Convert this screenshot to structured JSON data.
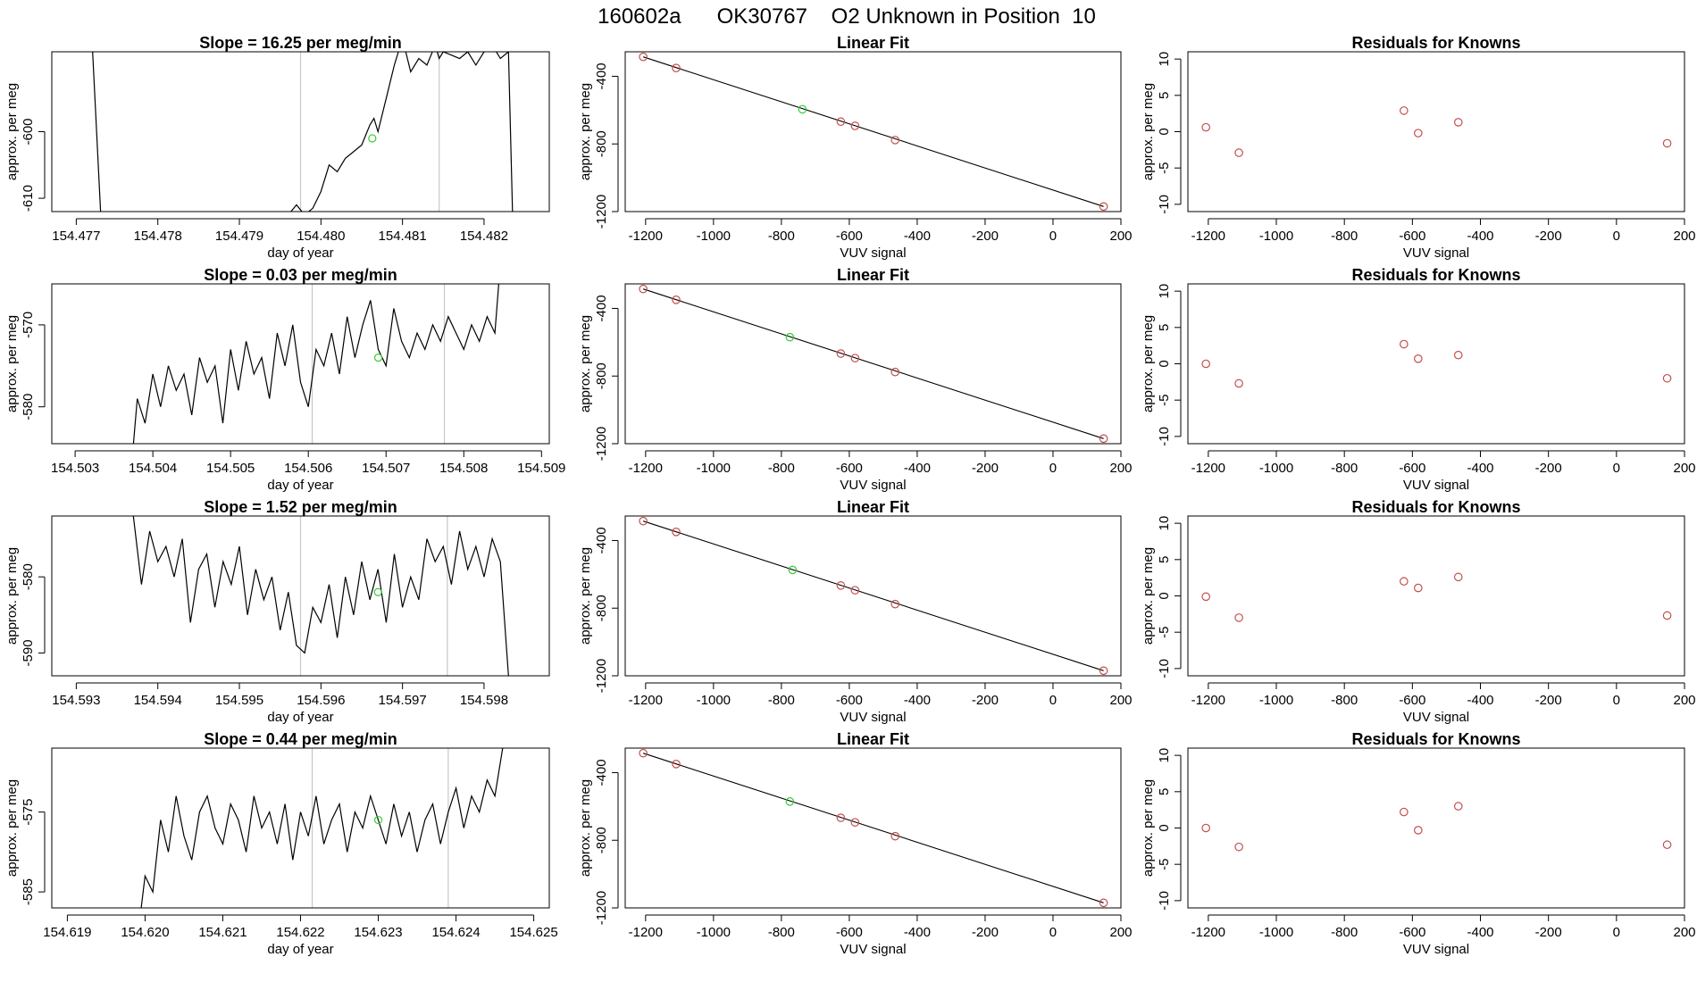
{
  "page_title": "160602a      OK30767    O2 Unknown in Position  10",
  "colors": {
    "line": "#000000",
    "frame": "#000000",
    "vline": "#c8c8c8",
    "known_point": "#c44e4e",
    "unknown_point": "#33cc33"
  },
  "chart_data": [
    {
      "type": "line",
      "title": "Slope =  16.25  per meg/min",
      "xlabel": "day of year",
      "ylabel": "approx. per meg",
      "xlim": [
        154.4767,
        154.4828
      ],
      "ylim": [
        -612,
        -588
      ],
      "xticks": [
        154.477,
        154.478,
        154.479,
        154.48,
        154.481,
        154.482
      ],
      "xtick_labels": [
        "154.477",
        "154.478",
        "154.479",
        "154.480",
        "154.481",
        "154.482"
      ],
      "yticks": [
        -610,
        -600
      ],
      "ytick_labels": [
        "-610",
        "-600"
      ],
      "vlines": [
        154.47975,
        154.48145
      ],
      "marker": [
        154.48063,
        -601
      ],
      "x": [
        154.4772,
        154.4773,
        154.4796,
        154.4797,
        154.4798,
        154.4799,
        154.48,
        154.4801,
        154.4802,
        154.4803,
        154.4804,
        154.4805,
        154.4806,
        154.48065,
        154.4807,
        154.4808,
        154.4809,
        154.481,
        154.4811,
        154.4812,
        154.4813,
        154.4814,
        154.48145,
        154.4815,
        154.4817,
        154.4818,
        154.4819,
        154.482,
        154.4821,
        154.4822,
        154.4823,
        154.48235
      ],
      "y": [
        -588,
        -612.5,
        -612.5,
        -611,
        -612.5,
        -611.5,
        -609,
        -605,
        -606,
        -604,
        -603,
        -602,
        -599,
        -598,
        -600,
        -595,
        -590,
        -586,
        -591,
        -589,
        -590,
        -587,
        -589,
        -588,
        -589,
        -588,
        -590,
        -588,
        -587,
        -589,
        -588,
        -612.5
      ]
    },
    {
      "type": "scatter",
      "title": "Linear Fit",
      "xlabel": "VUV signal",
      "ylabel": "approx. per meg",
      "xlim": [
        -1260,
        200
      ],
      "ylim": [
        -1200,
        -255
      ],
      "xticks": [
        -1200,
        -1000,
        -800,
        -600,
        -400,
        -200,
        0,
        200
      ],
      "xtick_labels": [
        "-1200",
        "-1000",
        "-800",
        "-600",
        "-400",
        "-200",
        "0",
        "200"
      ],
      "yticks": [
        -1200,
        -800,
        -400
      ],
      "ytick_labels": [
        "-1200",
        "-800",
        "-400"
      ],
      "line": [
        [
          -1207,
          -285
        ],
        [
          149,
          -1170
        ]
      ],
      "knowns": [
        [
          -1207,
          -285
        ],
        [
          -1110,
          -351
        ],
        [
          -625,
          -668
        ],
        [
          -583,
          -693
        ],
        [
          -465,
          -777
        ],
        [
          149,
          -1170
        ]
      ],
      "unknown": [
        [
          -738,
          -595
        ]
      ]
    },
    {
      "type": "scatter",
      "title": "Residuals for Knowns",
      "xlabel": "VUV signal",
      "ylabel": "approx. per meg",
      "xlim": [
        -1260,
        200
      ],
      "ylim": [
        -11,
        11
      ],
      "xticks": [
        -1200,
        -1000,
        -800,
        -600,
        -400,
        -200,
        0,
        200
      ],
      "xtick_labels": [
        "-1200",
        "-1000",
        "-800",
        "-600",
        "-400",
        "-200",
        "0",
        "200"
      ],
      "yticks": [
        -10,
        -5,
        0,
        5,
        10
      ],
      "ytick_labels": [
        "-10",
        "-5",
        "0",
        "5",
        "10"
      ],
      "knowns": [
        [
          -1207,
          0.6
        ],
        [
          -1110,
          -2.9
        ],
        [
          -625,
          2.9
        ],
        [
          -583,
          -0.2
        ],
        [
          -465,
          1.3
        ],
        [
          149,
          -1.6
        ]
      ]
    },
    {
      "type": "line",
      "title": "Slope =  0.03  per meg/min",
      "xlabel": "day of year",
      "ylabel": "approx. per meg",
      "xlim": [
        154.5027,
        154.5091
      ],
      "ylim": [
        -584.5,
        -565
      ],
      "xticks": [
        154.503,
        154.504,
        154.505,
        154.506,
        154.507,
        154.508,
        154.509
      ],
      "xtick_labels": [
        "154.503",
        "154.504",
        "154.505",
        "154.506",
        "154.507",
        "154.508",
        "154.509"
      ],
      "yticks": [
        -580,
        -570
      ],
      "ytick_labels": [
        "-580",
        "-570"
      ],
      "vlines": [
        154.50605,
        154.50775
      ],
      "marker": [
        154.5069,
        -574
      ],
      "x": [
        154.50375,
        154.5038,
        154.5039,
        154.504,
        154.5041,
        154.5042,
        154.5043,
        154.5044,
        154.5045,
        154.5046,
        154.5047,
        154.5048,
        154.5049,
        154.505,
        154.5051,
        154.5052,
        154.5053,
        154.5054,
        154.5055,
        154.5056,
        154.5057,
        154.5058,
        154.5059,
        154.506,
        154.5061,
        154.5062,
        154.5063,
        154.5064,
        154.5065,
        154.5066,
        154.5067,
        154.5068,
        154.5069,
        154.507,
        154.5071,
        154.5072,
        154.5073,
        154.5074,
        154.5075,
        154.5076,
        154.5077,
        154.5078,
        154.5079,
        154.508,
        154.5081,
        154.5082,
        154.5083,
        154.5084,
        154.50845
      ],
      "y": [
        -584.5,
        -579,
        -582,
        -576,
        -580,
        -575,
        -578,
        -576,
        -581,
        -574,
        -577,
        -575,
        -582,
        -573,
        -578,
        -572,
        -576,
        -574,
        -579,
        -571,
        -575,
        -570,
        -577,
        -580,
        -573,
        -575,
        -571,
        -576,
        -569,
        -574,
        -570,
        -567,
        -573,
        -575,
        -568,
        -572,
        -574,
        -571,
        -573,
        -570,
        -572,
        -569,
        -571,
        -573,
        -570,
        -572,
        -569,
        -571,
        -565
      ]
    },
    {
      "type": "scatter",
      "title": "Linear Fit",
      "xlabel": "VUV signal",
      "ylabel": "approx. per meg",
      "xlim": [
        -1260,
        200
      ],
      "ylim": [
        -1200,
        -255
      ],
      "xticks": [
        -1200,
        -1000,
        -800,
        -600,
        -400,
        -200,
        0,
        200
      ],
      "xtick_labels": [
        "-1200",
        "-1000",
        "-800",
        "-600",
        "-400",
        "-200",
        "0",
        "200"
      ],
      "yticks": [
        -1200,
        -800,
        -400
      ],
      "ytick_labels": [
        "-1200",
        "-800",
        "-400"
      ],
      "line": [
        [
          -1207,
          -285
        ],
        [
          149,
          -1170
        ]
      ],
      "knowns": [
        [
          -1207,
          -285
        ],
        [
          -1110,
          -349
        ],
        [
          -625,
          -667
        ],
        [
          -583,
          -694
        ],
        [
          -465,
          -776
        ],
        [
          149,
          -1170
        ]
      ],
      "unknown": [
        [
          -775,
          -570
        ]
      ]
    },
    {
      "type": "scatter",
      "title": "Residuals for Knowns",
      "xlabel": "VUV signal",
      "ylabel": "approx. per meg",
      "xlim": [
        -1260,
        200
      ],
      "ylim": [
        -11,
        11
      ],
      "xticks": [
        -1200,
        -1000,
        -800,
        -600,
        -400,
        -200,
        0,
        200
      ],
      "xtick_labels": [
        "-1200",
        "-1000",
        "-800",
        "-600",
        "-400",
        "-200",
        "0",
        "200"
      ],
      "yticks": [
        -10,
        -5,
        0,
        5,
        10
      ],
      "ytick_labels": [
        "-10",
        "-5",
        "0",
        "5",
        "10"
      ],
      "knowns": [
        [
          -1207,
          0
        ],
        [
          -1110,
          -2.7
        ],
        [
          -625,
          2.7
        ],
        [
          -583,
          0.7
        ],
        [
          -465,
          1.2
        ],
        [
          149,
          -2.0
        ]
      ]
    },
    {
      "type": "line",
      "title": "Slope =  1.52  per meg/min",
      "xlabel": "day of year",
      "ylabel": "approx. per meg",
      "xlim": [
        154.5927,
        154.5988
      ],
      "ylim": [
        -593,
        -572
      ],
      "xticks": [
        154.593,
        154.594,
        154.595,
        154.596,
        154.597,
        154.598
      ],
      "xtick_labels": [
        "154.593",
        "154.594",
        "154.595",
        "154.596",
        "154.597",
        "154.598"
      ],
      "yticks": [
        -590,
        -580
      ],
      "ytick_labels": [
        "-590",
        "-580"
      ],
      "vlines": [
        154.59575,
        154.59755
      ],
      "marker": [
        154.5967,
        -582
      ],
      "x": [
        154.5937,
        154.5938,
        154.5939,
        154.594,
        154.5941,
        154.5942,
        154.5943,
        154.5944,
        154.5945,
        154.5946,
        154.5947,
        154.5948,
        154.5949,
        154.595,
        154.5951,
        154.5952,
        154.5953,
        154.5954,
        154.5955,
        154.5956,
        154.5957,
        154.5958,
        154.5959,
        154.596,
        154.5961,
        154.5962,
        154.5963,
        154.5964,
        154.5965,
        154.5966,
        154.5967,
        154.5968,
        154.5969,
        154.597,
        154.5971,
        154.5972,
        154.5973,
        154.5974,
        154.5975,
        154.5976,
        154.5977,
        154.5978,
        154.5979,
        154.598,
        154.5981,
        154.5982,
        154.5983
      ],
      "y": [
        -572,
        -581,
        -574,
        -578,
        -576,
        -580,
        -575,
        -586,
        -579,
        -577,
        -584,
        -578,
        -581,
        -576,
        -585,
        -579,
        -583,
        -580,
        -587,
        -582,
        -589,
        -590,
        -584,
        -586,
        -581,
        -588,
        -580,
        -585,
        -578,
        -583,
        -579,
        -586,
        -577,
        -584,
        -580,
        -583,
        -575,
        -578,
        -576,
        -581,
        -574,
        -579,
        -576,
        -580,
        -575,
        -578,
        -593
      ]
    },
    {
      "type": "scatter",
      "title": "Linear Fit",
      "xlabel": "VUV signal",
      "ylabel": "approx. per meg",
      "xlim": [
        -1260,
        200
      ],
      "ylim": [
        -1200,
        -255
      ],
      "xticks": [
        -1200,
        -1000,
        -800,
        -600,
        -400,
        -200,
        0,
        200
      ],
      "xtick_labels": [
        "-1200",
        "-1000",
        "-800",
        "-600",
        "-400",
        "-200",
        "0",
        "200"
      ],
      "yticks": [
        -1200,
        -800,
        -400
      ],
      "ytick_labels": [
        "-1200",
        "-800",
        "-400"
      ],
      "line": [
        [
          -1207,
          -285
        ],
        [
          149,
          -1170
        ]
      ],
      "knowns": [
        [
          -1207,
          -285
        ],
        [
          -1110,
          -349
        ],
        [
          -625,
          -666
        ],
        [
          -583,
          -694
        ],
        [
          -465,
          -776
        ],
        [
          149,
          -1170
        ]
      ],
      "unknown": [
        [
          -767,
          -574
        ]
      ]
    },
    {
      "type": "scatter",
      "title": "Residuals for Knowns",
      "xlabel": "VUV signal",
      "ylabel": "approx. per meg",
      "xlim": [
        -1260,
        200
      ],
      "ylim": [
        -11,
        11
      ],
      "xticks": [
        -1200,
        -1000,
        -800,
        -600,
        -400,
        -200,
        0,
        200
      ],
      "xtick_labels": [
        "-1200",
        "-1000",
        "-800",
        "-600",
        "-400",
        "-200",
        "0",
        "200"
      ],
      "yticks": [
        -10,
        -5,
        0,
        5,
        10
      ],
      "ytick_labels": [
        "-10",
        "-5",
        "0",
        "5",
        "10"
      ],
      "knowns": [
        [
          -1207,
          -0.1
        ],
        [
          -1110,
          -3.0
        ],
        [
          -625,
          2.0
        ],
        [
          -583,
          1.1
        ],
        [
          -465,
          2.6
        ],
        [
          149,
          -2.7
        ]
      ]
    },
    {
      "type": "line",
      "title": "Slope =  0.44  per meg/min",
      "xlabel": "day of year",
      "ylabel": "approx. per meg",
      "xlim": [
        154.6188,
        154.6252
      ],
      "ylim": [
        -587,
        -567
      ],
      "xticks": [
        154.619,
        154.62,
        154.621,
        154.622,
        154.623,
        154.624,
        154.625
      ],
      "xtick_labels": [
        "154.619",
        "154.620",
        "154.621",
        "154.622",
        "154.623",
        "154.624",
        "154.625"
      ],
      "yticks": [
        -585,
        -575
      ],
      "ytick_labels": [
        "-585",
        "-575"
      ],
      "vlines": [
        154.62215,
        154.6239
      ],
      "marker": [
        154.623,
        -576
      ],
      "x": [
        154.61995,
        154.62,
        154.6201,
        154.6202,
        154.6203,
        154.6204,
        154.6205,
        154.6206,
        154.6207,
        154.6208,
        154.6209,
        154.621,
        154.6211,
        154.6212,
        154.6213,
        154.6214,
        154.6215,
        154.6216,
        154.6217,
        154.6218,
        154.6219,
        154.622,
        154.6221,
        154.6222,
        154.6223,
        154.6224,
        154.6225,
        154.6226,
        154.6227,
        154.6228,
        154.6229,
        154.623,
        154.6231,
        154.6232,
        154.6233,
        154.6234,
        154.6235,
        154.6236,
        154.6237,
        154.6238,
        154.6239,
        154.624,
        154.6241,
        154.6242,
        154.6243,
        154.6244,
        154.6245,
        154.6246
      ],
      "y": [
        -587,
        -583,
        -585,
        -576,
        -580,
        -573,
        -578,
        -581,
        -575,
        -573,
        -577,
        -579,
        -574,
        -576,
        -580,
        -573,
        -577,
        -575,
        -579,
        -574,
        -581,
        -575,
        -578,
        -573,
        -579,
        -576,
        -574,
        -580,
        -575,
        -577,
        -573,
        -576,
        -579,
        -574,
        -578,
        -575,
        -580,
        -576,
        -574,
        -579,
        -575,
        -572,
        -577,
        -573,
        -575,
        -571,
        -573,
        -567
      ]
    },
    {
      "type": "scatter",
      "title": "Linear Fit",
      "xlabel": "VUV signal",
      "ylabel": "approx. per meg",
      "xlim": [
        -1260,
        200
      ],
      "ylim": [
        -1200,
        -255
      ],
      "xticks": [
        -1200,
        -1000,
        -800,
        -600,
        -400,
        -200,
        0,
        200
      ],
      "xtick_labels": [
        "-1200",
        "-1000",
        "-800",
        "-600",
        "-400",
        "-200",
        "0",
        "200"
      ],
      "yticks": [
        -1200,
        -800,
        -400
      ],
      "ytick_labels": [
        "-1200",
        "-800",
        "-400"
      ],
      "line": [
        [
          -1207,
          -285
        ],
        [
          149,
          -1170
        ]
      ],
      "knowns": [
        [
          -1207,
          -285
        ],
        [
          -1110,
          -349
        ],
        [
          -625,
          -667
        ],
        [
          -583,
          -694
        ],
        [
          -465,
          -776
        ],
        [
          149,
          -1170
        ]
      ],
      "unknown": [
        [
          -775,
          -571
        ]
      ]
    },
    {
      "type": "scatter",
      "title": "Residuals for Knowns",
      "xlabel": "VUV signal",
      "ylabel": "approx. per meg",
      "xlim": [
        -1260,
        200
      ],
      "ylim": [
        -11,
        11
      ],
      "xticks": [
        -1200,
        -1000,
        -800,
        -600,
        -400,
        -200,
        0,
        200
      ],
      "xtick_labels": [
        "-1200",
        "-1000",
        "-800",
        "-600",
        "-400",
        "-200",
        "0",
        "200"
      ],
      "yticks": [
        -10,
        -5,
        0,
        5,
        10
      ],
      "ytick_labels": [
        "-10",
        "-5",
        "0",
        "5",
        "10"
      ],
      "knowns": [
        [
          -1207,
          0
        ],
        [
          -1110,
          -2.6
        ],
        [
          -625,
          2.2
        ],
        [
          -583,
          -0.3
        ],
        [
          -465,
          3.0
        ],
        [
          149,
          -2.3
        ]
      ]
    }
  ]
}
